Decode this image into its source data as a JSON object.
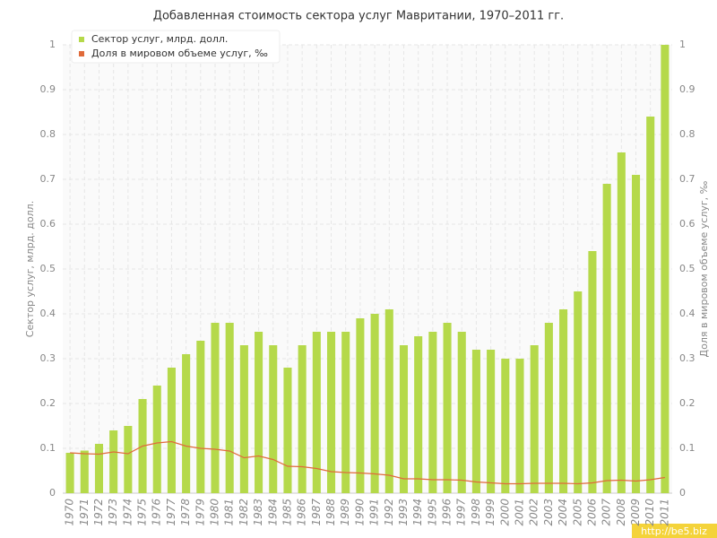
{
  "chart_data": {
    "type": "bar-line",
    "title": "Добавленная стоимость сектора услуг Мавритании, 1970–2011 гг.",
    "y_label": "Сектор услуг, млрд. долл.",
    "y2_label": "Доля в мировом объеме услуг, ‰",
    "categories": [
      "1970",
      "1971",
      "1972",
      "1973",
      "1974",
      "1975",
      "1976",
      "1977",
      "1978",
      "1979",
      "1980",
      "1981",
      "1982",
      "1983",
      "1984",
      "1985",
      "1986",
      "1987",
      "1988",
      "1989",
      "1990",
      "1991",
      "1992",
      "1993",
      "1994",
      "1995",
      "1996",
      "1997",
      "1998",
      "1999",
      "2000",
      "2001",
      "2002",
      "2003",
      "2004",
      "2005",
      "2006",
      "2007",
      "2008",
      "2009",
      "2010",
      "2011"
    ],
    "series": [
      {
        "name": "Сектор услуг, млрд. долл.",
        "color": "#b5d94a",
        "kind": "bar",
        "values": [
          0.09,
          0.095,
          0.11,
          0.14,
          0.15,
          0.21,
          0.24,
          0.28,
          0.31,
          0.34,
          0.38,
          0.38,
          0.33,
          0.36,
          0.33,
          0.28,
          0.33,
          0.36,
          0.36,
          0.36,
          0.39,
          0.4,
          0.41,
          0.33,
          0.35,
          0.36,
          0.38,
          0.36,
          0.32,
          0.32,
          0.3,
          0.3,
          0.33,
          0.38,
          0.41,
          0.45,
          0.54,
          0.69,
          0.76,
          0.71,
          0.84,
          1.0
        ]
      },
      {
        "name": "Доля в мировом объеме услуг, ‰",
        "color": "#e06a3a",
        "kind": "line",
        "axis": "y2",
        "values": [
          0.09,
          0.088,
          0.087,
          0.092,
          0.088,
          0.105,
          0.112,
          0.115,
          0.105,
          0.1,
          0.098,
          0.094,
          0.079,
          0.083,
          0.075,
          0.06,
          0.059,
          0.055,
          0.048,
          0.046,
          0.045,
          0.043,
          0.04,
          0.032,
          0.032,
          0.03,
          0.03,
          0.029,
          0.025,
          0.023,
          0.021,
          0.021,
          0.022,
          0.022,
          0.022,
          0.021,
          0.023,
          0.028,
          0.029,
          0.027,
          0.03,
          0.035
        ]
      }
    ],
    "ylim": [
      0,
      1
    ],
    "yticks": [
      0,
      0.1,
      0.2,
      0.3,
      0.4,
      0.5,
      0.6,
      0.7,
      0.8,
      0.9,
      1
    ],
    "y2lim": [
      0,
      1
    ],
    "y2ticks": [
      0,
      0.1,
      0.2,
      0.3,
      0.4,
      0.5,
      0.6,
      0.7,
      0.8,
      0.9,
      1
    ],
    "grid": true,
    "legend": "top-left",
    "watermark": "http://be5.biz"
  }
}
